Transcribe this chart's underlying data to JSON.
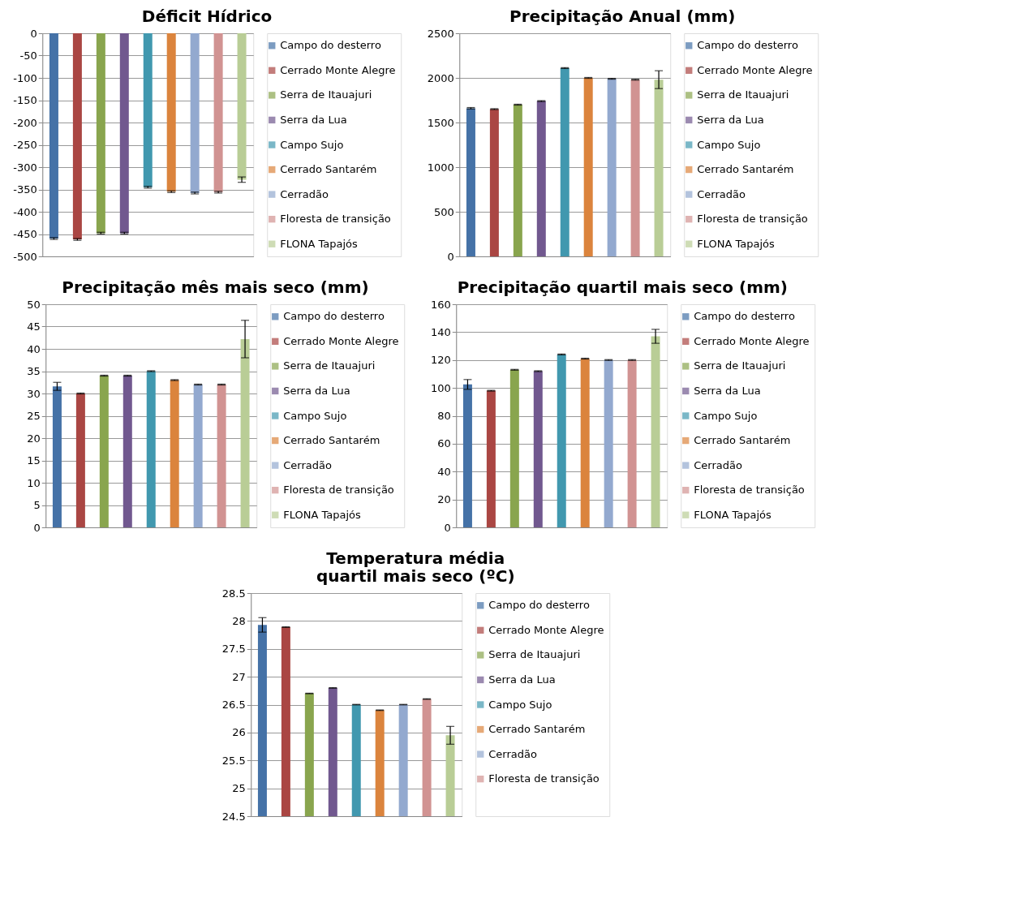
{
  "chart_data": [
    {
      "type": "bar",
      "title": "Déficit Hídrico",
      "categories": [
        null,
        null,
        null,
        null,
        null,
        null,
        null,
        null,
        null
      ],
      "ylim": [
        -500,
        0
      ],
      "yticks": [
        0,
        -50,
        -100,
        -150,
        -200,
        -250,
        -300,
        -350,
        -400,
        -450,
        -500
      ],
      "grid": "y",
      "legend": "right",
      "tick_labels": "y",
      "series": [
        {
          "name": "Campo  do desterro",
          "color": "#4572a7",
          "values": [
            -460,
            null,
            null,
            null,
            null,
            null,
            null,
            null,
            null
          ],
          "errors": [
            2,
            null,
            null,
            null,
            null,
            null,
            null,
            null,
            null
          ]
        },
        {
          "name": "Cerrado Monte Alegre",
          "color": "#aa4643",
          "values": [
            null,
            -462,
            null,
            null,
            null,
            null,
            null,
            null,
            null
          ],
          "errors": [
            null,
            2,
            null,
            null,
            null,
            null,
            null,
            null,
            null
          ]
        },
        {
          "name": "Serra de Itauajuri",
          "color": "#89a54e",
          "values": [
            null,
            null,
            -448,
            null,
            null,
            null,
            null,
            null,
            null
          ],
          "errors": [
            null,
            null,
            2,
            null,
            null,
            null,
            null,
            null,
            null
          ]
        },
        {
          "name": "Serra da Lua",
          "color": "#71588f",
          "values": [
            null,
            null,
            null,
            -448,
            null,
            null,
            null,
            null,
            null
          ],
          "errors": [
            null,
            null,
            null,
            2,
            null,
            null,
            null,
            null,
            null
          ]
        },
        {
          "name": "Campo Sujo",
          "color": "#4198af",
          "values": [
            null,
            null,
            null,
            null,
            -345,
            null,
            null,
            null,
            null
          ],
          "errors": [
            null,
            null,
            null,
            null,
            2,
            null,
            null,
            null,
            null
          ]
        },
        {
          "name": "Cerrado Santarém",
          "color": "#db843d",
          "values": [
            null,
            null,
            null,
            null,
            null,
            -355,
            null,
            null,
            null
          ],
          "errors": [
            null,
            null,
            null,
            null,
            null,
            2,
            null,
            null,
            null
          ]
        },
        {
          "name": "Cerradão",
          "color": "#93a9cf",
          "values": [
            null,
            null,
            null,
            null,
            null,
            null,
            -358,
            null,
            null
          ],
          "errors": [
            null,
            null,
            null,
            null,
            null,
            null,
            2,
            null,
            null
          ]
        },
        {
          "name": "Floresta de transição",
          "color": "#d19392",
          "values": [
            null,
            null,
            null,
            null,
            null,
            null,
            null,
            -356,
            null
          ],
          "errors": [
            null,
            null,
            null,
            null,
            null,
            null,
            null,
            2,
            null
          ]
        },
        {
          "name": "FLONA Tapajós",
          "color": "#b9cd96",
          "values": [
            null,
            null,
            null,
            null,
            null,
            null,
            null,
            null,
            -328
          ],
          "errors": [
            null,
            null,
            null,
            null,
            null,
            null,
            null,
            null,
            6
          ]
        }
      ]
    },
    {
      "type": "bar",
      "title": "Precipitação Anual (mm)",
      "categories": [
        null,
        null,
        null,
        null,
        null,
        null,
        null,
        null,
        null
      ],
      "ylim": [
        0,
        2500
      ],
      "yticks": [
        0,
        500,
        1000,
        1500,
        2000,
        2500
      ],
      "grid": "y",
      "legend": "right",
      "tick_labels": "y",
      "series": [
        {
          "name": "Campo  do desterro",
          "color": "#4572a7",
          "values": [
            1660,
            null,
            null,
            null,
            null,
            null,
            null,
            null,
            null
          ],
          "errors": [
            8,
            null,
            null,
            null,
            null,
            null,
            null,
            null,
            null
          ]
        },
        {
          "name": "Cerrado Monte Alegre",
          "color": "#aa4643",
          "values": [
            null,
            1650,
            null,
            null,
            null,
            null,
            null,
            null,
            null
          ],
          "errors": [
            null,
            5,
            null,
            null,
            null,
            null,
            null,
            null,
            null
          ]
        },
        {
          "name": "Serra de Itauajuri",
          "color": "#89a54e",
          "values": [
            null,
            null,
            1700,
            null,
            null,
            null,
            null,
            null,
            null
          ],
          "errors": [
            null,
            null,
            5,
            null,
            null,
            null,
            null,
            null,
            null
          ]
        },
        {
          "name": "Serra da Lua",
          "color": "#71588f",
          "values": [
            null,
            null,
            null,
            1740,
            null,
            null,
            null,
            null,
            null
          ],
          "errors": [
            null,
            null,
            null,
            5,
            null,
            null,
            null,
            null,
            null
          ]
        },
        {
          "name": "Campo Sujo",
          "color": "#4198af",
          "values": [
            null,
            null,
            null,
            null,
            2110,
            null,
            null,
            null,
            null
          ],
          "errors": [
            null,
            null,
            null,
            null,
            5,
            null,
            null,
            null,
            null
          ]
        },
        {
          "name": "Cerrado Santarém",
          "color": "#db843d",
          "values": [
            null,
            null,
            null,
            null,
            null,
            2000,
            null,
            null,
            null
          ],
          "errors": [
            null,
            null,
            null,
            null,
            null,
            5,
            null,
            null,
            null
          ]
        },
        {
          "name": "Cerradão",
          "color": "#93a9cf",
          "values": [
            null,
            null,
            null,
            null,
            null,
            null,
            1990,
            null,
            null
          ],
          "errors": [
            null,
            null,
            null,
            null,
            null,
            null,
            5,
            null,
            null
          ]
        },
        {
          "name": "Floresta de transição",
          "color": "#d19392",
          "values": [
            null,
            null,
            null,
            null,
            null,
            null,
            null,
            1980,
            null
          ],
          "errors": [
            null,
            null,
            null,
            null,
            null,
            null,
            null,
            5,
            null
          ]
        },
        {
          "name": "FLONA Tapajós",
          "color": "#b9cd96",
          "values": [
            null,
            null,
            null,
            null,
            null,
            null,
            null,
            null,
            1980
          ],
          "errors": [
            null,
            null,
            null,
            null,
            null,
            null,
            null,
            null,
            100
          ]
        }
      ]
    },
    {
      "type": "bar",
      "title": "Precipitação mês mais seco (mm)",
      "categories": [
        null,
        null,
        null,
        null,
        null,
        null,
        null,
        null,
        null
      ],
      "ylim": [
        0,
        50
      ],
      "yticks": [
        0,
        5,
        10,
        15,
        20,
        25,
        30,
        35,
        40,
        45,
        50
      ],
      "grid": "y",
      "legend": "right",
      "tick_labels": "y",
      "series": [
        {
          "name": "Campo  do desterro",
          "color": "#4572a7",
          "values": [
            31.6,
            null,
            null,
            null,
            null,
            null,
            null,
            null,
            null
          ],
          "errors": [
            0.9,
            null,
            null,
            null,
            null,
            null,
            null,
            null,
            null
          ]
        },
        {
          "name": "Cerrado Monte Alegre",
          "color": "#aa4643",
          "values": [
            null,
            30,
            null,
            null,
            null,
            null,
            null,
            null,
            null
          ],
          "errors": [
            null,
            0.1,
            null,
            null,
            null,
            null,
            null,
            null,
            null
          ]
        },
        {
          "name": "Serra de Itauajuri",
          "color": "#89a54e",
          "values": [
            null,
            null,
            34,
            null,
            null,
            null,
            null,
            null,
            null
          ],
          "errors": [
            null,
            null,
            0.1,
            null,
            null,
            null,
            null,
            null,
            null
          ]
        },
        {
          "name": "Serra da Lua",
          "color": "#71588f",
          "values": [
            null,
            null,
            null,
            34,
            null,
            null,
            null,
            null,
            null
          ],
          "errors": [
            null,
            null,
            null,
            0.1,
            null,
            null,
            null,
            null,
            null
          ]
        },
        {
          "name": "Campo Sujo",
          "color": "#4198af",
          "values": [
            null,
            null,
            null,
            null,
            35,
            null,
            null,
            null,
            null
          ],
          "errors": [
            null,
            null,
            null,
            null,
            0.1,
            null,
            null,
            null,
            null
          ]
        },
        {
          "name": "Cerrado Santarém",
          "color": "#db843d",
          "values": [
            null,
            null,
            null,
            null,
            null,
            33,
            null,
            null,
            null
          ],
          "errors": [
            null,
            null,
            null,
            null,
            null,
            0.1,
            null,
            null,
            null
          ]
        },
        {
          "name": "Cerradão",
          "color": "#93a9cf",
          "values": [
            null,
            null,
            null,
            null,
            null,
            null,
            32,
            null,
            null
          ],
          "errors": [
            null,
            null,
            null,
            null,
            null,
            null,
            0.1,
            null,
            null
          ]
        },
        {
          "name": "Floresta de transição",
          "color": "#d19392",
          "values": [
            null,
            null,
            null,
            null,
            null,
            null,
            null,
            32,
            null
          ],
          "errors": [
            null,
            null,
            null,
            null,
            null,
            null,
            null,
            0.1,
            null
          ]
        },
        {
          "name": "FLONA Tapajós",
          "color": "#b9cd96",
          "values": [
            null,
            null,
            null,
            null,
            null,
            null,
            null,
            null,
            42.2
          ],
          "errors": [
            null,
            null,
            null,
            null,
            null,
            null,
            null,
            null,
            4.2
          ]
        }
      ]
    },
    {
      "type": "bar",
      "title": "Precipitação quartil mais seco (mm)",
      "categories": [
        null,
        null,
        null,
        null,
        null,
        null,
        null,
        null,
        null
      ],
      "ylim": [
        0,
        160
      ],
      "yticks": [
        0,
        20,
        40,
        60,
        80,
        100,
        120,
        140,
        160
      ],
      "grid": "y",
      "legend": "right",
      "tick_labels": "y",
      "series": [
        {
          "name": "Campo  do desterro",
          "color": "#4572a7",
          "values": [
            102.5,
            null,
            null,
            null,
            null,
            null,
            null,
            null,
            null
          ],
          "errors": [
            3.5,
            null,
            null,
            null,
            null,
            null,
            null,
            null,
            null
          ]
        },
        {
          "name": "Cerrado Monte Alegre",
          "color": "#aa4643",
          "values": [
            null,
            98,
            null,
            null,
            null,
            null,
            null,
            null,
            null
          ],
          "errors": [
            null,
            0.3,
            null,
            null,
            null,
            null,
            null,
            null,
            null
          ]
        },
        {
          "name": "Serra de Itauajuri",
          "color": "#89a54e",
          "values": [
            null,
            null,
            113,
            null,
            null,
            null,
            null,
            null,
            null
          ],
          "errors": [
            null,
            null,
            0.3,
            null,
            null,
            null,
            null,
            null,
            null
          ]
        },
        {
          "name": "Serra da Lua",
          "color": "#71588f",
          "values": [
            null,
            null,
            null,
            112,
            null,
            null,
            null,
            null,
            null
          ],
          "errors": [
            null,
            null,
            null,
            0.3,
            null,
            null,
            null,
            null,
            null
          ]
        },
        {
          "name": "Campo Sujo",
          "color": "#4198af",
          "values": [
            null,
            null,
            null,
            null,
            124,
            null,
            null,
            null,
            null
          ],
          "errors": [
            null,
            null,
            null,
            null,
            0.3,
            null,
            null,
            null,
            null
          ]
        },
        {
          "name": "Cerrado Santarém",
          "color": "#db843d",
          "values": [
            null,
            null,
            null,
            null,
            null,
            121,
            null,
            null,
            null
          ],
          "errors": [
            null,
            null,
            null,
            null,
            null,
            0.3,
            null,
            null,
            null
          ]
        },
        {
          "name": "Cerradão",
          "color": "#93a9cf",
          "values": [
            null,
            null,
            null,
            null,
            null,
            null,
            120,
            null,
            null
          ],
          "errors": [
            null,
            null,
            null,
            null,
            null,
            null,
            0.3,
            null,
            null
          ]
        },
        {
          "name": "Floresta de transição",
          "color": "#d19392",
          "values": [
            null,
            null,
            null,
            null,
            null,
            null,
            null,
            120,
            null
          ],
          "errors": [
            null,
            null,
            null,
            null,
            null,
            null,
            null,
            0.3,
            null
          ]
        },
        {
          "name": "FLONA Tapajós",
          "color": "#b9cd96",
          "values": [
            null,
            null,
            null,
            null,
            null,
            null,
            null,
            null,
            137
          ],
          "errors": [
            null,
            null,
            null,
            null,
            null,
            null,
            null,
            null,
            5
          ]
        }
      ]
    },
    {
      "type": "bar",
      "title": "Temperatura média\nquartil mais seco (ºC)",
      "categories": [
        null,
        null,
        null,
        null,
        null,
        null,
        null,
        null,
        null
      ],
      "ylim": [
        24.5,
        28.5
      ],
      "yticks": [
        24.5,
        25,
        25.5,
        26,
        26.5,
        27,
        27.5,
        28,
        28.5
      ],
      "grid": "y",
      "legend": "right",
      "tick_labels": "y",
      "series": [
        {
          "name": "Campo  do desterro",
          "color": "#4572a7",
          "values": [
            27.93,
            null,
            null,
            null,
            null,
            null,
            null,
            null,
            null
          ],
          "errors": [
            0.13,
            null,
            null,
            null,
            null,
            null,
            null,
            null,
            null
          ]
        },
        {
          "name": "Cerrado Monte Alegre",
          "color": "#aa4643",
          "values": [
            null,
            27.89,
            null,
            null,
            null,
            null,
            null,
            null,
            null
          ],
          "errors": [
            null,
            0.005,
            null,
            null,
            null,
            null,
            null,
            null,
            null
          ]
        },
        {
          "name": "Serra de Itauajuri",
          "color": "#89a54e",
          "values": [
            null,
            null,
            26.7,
            null,
            null,
            null,
            null,
            null,
            null
          ],
          "errors": [
            null,
            null,
            0.005,
            null,
            null,
            null,
            null,
            null,
            null
          ]
        },
        {
          "name": "Serra da Lua",
          "color": "#71588f",
          "values": [
            null,
            null,
            null,
            26.8,
            null,
            null,
            null,
            null,
            null
          ],
          "errors": [
            null,
            null,
            null,
            0.005,
            null,
            null,
            null,
            null,
            null
          ]
        },
        {
          "name": "Campo Sujo",
          "color": "#4198af",
          "values": [
            null,
            null,
            null,
            null,
            26.5,
            null,
            null,
            null,
            null
          ],
          "errors": [
            null,
            null,
            null,
            null,
            0.005,
            null,
            null,
            null,
            null
          ]
        },
        {
          "name": "Cerrado Santarém",
          "color": "#db843d",
          "values": [
            null,
            null,
            null,
            null,
            null,
            26.4,
            null,
            null,
            null
          ],
          "errors": [
            null,
            null,
            null,
            null,
            null,
            0.005,
            null,
            null,
            null
          ]
        },
        {
          "name": "Cerradão",
          "color": "#93a9cf",
          "values": [
            null,
            null,
            null,
            null,
            null,
            null,
            26.5,
            null,
            null
          ],
          "errors": [
            null,
            null,
            null,
            null,
            null,
            null,
            0.005,
            null,
            null
          ]
        },
        {
          "name": "Floresta de transição",
          "color": "#d19392",
          "values": [
            null,
            null,
            null,
            null,
            null,
            null,
            null,
            26.6,
            null
          ],
          "errors": [
            null,
            null,
            null,
            null,
            null,
            null,
            null,
            0.005,
            null
          ]
        },
        {
          "color": "#b9cd96",
          "values": [
            null,
            null,
            null,
            null,
            null,
            null,
            null,
            null,
            25.95
          ],
          "errors": [
            null,
            null,
            null,
            null,
            null,
            null,
            null,
            null,
            0.16
          ]
        }
      ]
    }
  ]
}
